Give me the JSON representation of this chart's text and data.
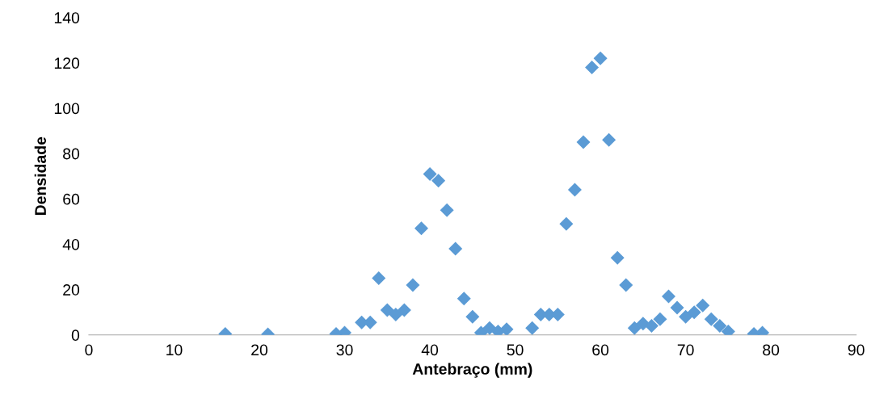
{
  "chart_data": {
    "type": "scatter",
    "xlabel": "Antebraço (mm)",
    "ylabel": "Densidade",
    "x": [
      16,
      21,
      29,
      30,
      32,
      33,
      34,
      35,
      36,
      37,
      38,
      39,
      40,
      41,
      42,
      43,
      44,
      45,
      46,
      47,
      48,
      49,
      52,
      53,
      54,
      55,
      56,
      57,
      58,
      59,
      60,
      61,
      62,
      63,
      64,
      65,
      66,
      67,
      68,
      69,
      70,
      71,
      72,
      73,
      74,
      75,
      78,
      79
    ],
    "series": [
      {
        "color": "#5b9bd5",
        "values": [
          0.5,
          0.3,
          0.5,
          1,
          5.5,
          5.5,
          25,
          11,
          9,
          11,
          22,
          47,
          71,
          68,
          55,
          38,
          16,
          8,
          1,
          3,
          1.5,
          2.5,
          3,
          9,
          9,
          9,
          49,
          64,
          85,
          118,
          122,
          86,
          34,
          22,
          3,
          5,
          4,
          7,
          17,
          12,
          8,
          10,
          13,
          7,
          4,
          1.5,
          0.5,
          1
        ]
      }
    ],
    "marker": "diamond",
    "xlim": [
      0,
      90
    ],
    "xticks": [
      0,
      10,
      20,
      30,
      40,
      50,
      60,
      70,
      80,
      90
    ],
    "ylim": [
      0,
      140
    ],
    "yticks": [
      0,
      20,
      40,
      60,
      80,
      100,
      120,
      140
    ],
    "grid": false,
    "legend": false
  }
}
